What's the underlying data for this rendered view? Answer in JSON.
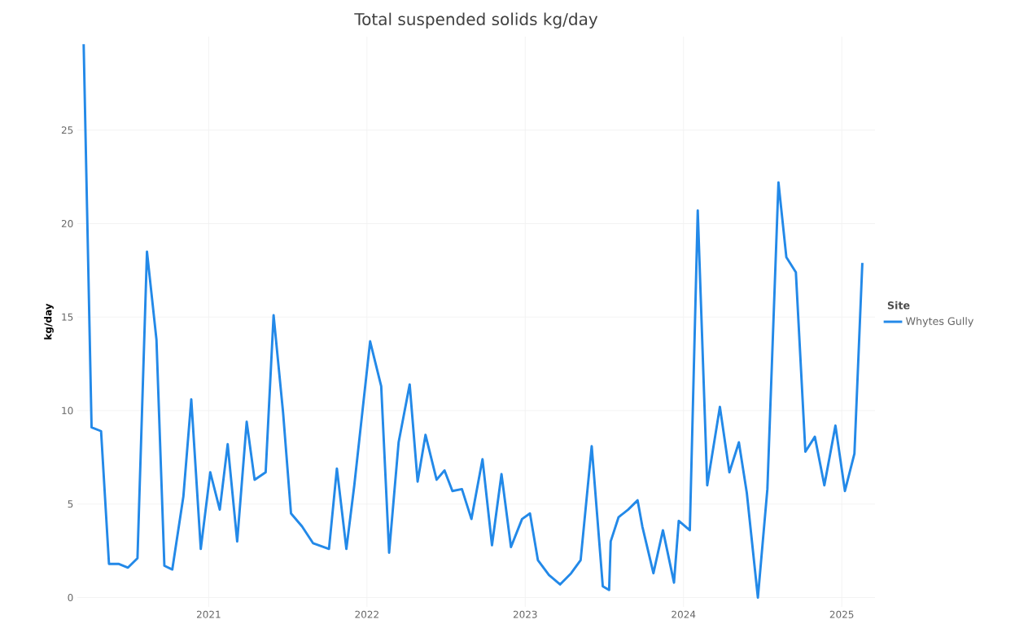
{
  "chart_data": {
    "type": "line",
    "title": "Total suspended solids kg/day",
    "ylabel": "kg/day",
    "legend_title": "Site",
    "x": [
      2020.21,
      2020.26,
      2020.32,
      2020.37,
      2020.43,
      2020.49,
      2020.55,
      2020.61,
      2020.67,
      2020.72,
      2020.77,
      2020.84,
      2020.89,
      2020.95,
      2021.01,
      2021.07,
      2021.12,
      2021.18,
      2021.24,
      2021.29,
      2021.36,
      2021.41,
      2021.47,
      2021.52,
      2021.59,
      2021.66,
      2021.76,
      2021.81,
      2021.87,
      2021.92,
      2022.02,
      2022.09,
      2022.14,
      2022.2,
      2022.27,
      2022.32,
      2022.37,
      2022.44,
      2022.49,
      2022.54,
      2022.6,
      2022.66,
      2022.73,
      2022.79,
      2022.85,
      2022.91,
      2022.98,
      2023.03,
      2023.08,
      2023.15,
      2023.22,
      2023.29,
      2023.35,
      2023.42,
      2023.49,
      2023.53,
      2023.54,
      2023.59,
      2023.65,
      2023.71,
      2023.74,
      2023.81,
      2023.87,
      2023.94,
      2023.97,
      2024.04,
      2024.09,
      2024.15,
      2024.23,
      2024.29,
      2024.35,
      2024.4,
      2024.47,
      2024.53,
      2024.6,
      2024.65,
      2024.71,
      2024.77,
      2024.83,
      2024.89,
      2024.96,
      2025.02,
      2025.08,
      2025.13
    ],
    "series": [
      {
        "name": "Whytes Gully",
        "color": "#2389e8",
        "values": [
          29.6,
          9.1,
          8.9,
          1.8,
          1.8,
          1.6,
          2.1,
          18.5,
          13.8,
          1.7,
          1.5,
          5.4,
          10.6,
          2.6,
          6.7,
          4.7,
          8.2,
          3.0,
          9.4,
          6.3,
          6.7,
          15.1,
          9.9,
          4.5,
          3.8,
          2.9,
          2.6,
          6.9,
          2.6,
          6.0,
          13.7,
          11.3,
          2.4,
          8.3,
          11.4,
          6.2,
          8.7,
          6.3,
          6.8,
          5.7,
          5.8,
          4.2,
          7.4,
          2.8,
          6.6,
          2.7,
          4.2,
          4.5,
          2.0,
          1.2,
          0.7,
          1.3,
          2.0,
          8.1,
          0.6,
          0.4,
          3.0,
          4.3,
          4.7,
          5.2,
          3.8,
          1.3,
          3.6,
          0.8,
          4.1,
          3.6,
          20.7,
          6.0,
          10.2,
          6.7,
          8.3,
          5.6,
          0.0,
          5.8,
          22.2,
          18.2,
          17.4,
          7.8,
          8.6,
          6.0,
          9.2,
          5.7,
          7.7,
          17.9
        ]
      }
    ],
    "xlim": [
      2020.17,
      2025.21
    ],
    "xticks": [
      2021,
      2022,
      2023,
      2024,
      2025
    ],
    "ylim": [
      -0.5,
      30
    ],
    "yticks": [
      0,
      5,
      10,
      15,
      20,
      25
    ],
    "grid": true,
    "legend": "right",
    "line_style": "solid",
    "marker": "none"
  }
}
